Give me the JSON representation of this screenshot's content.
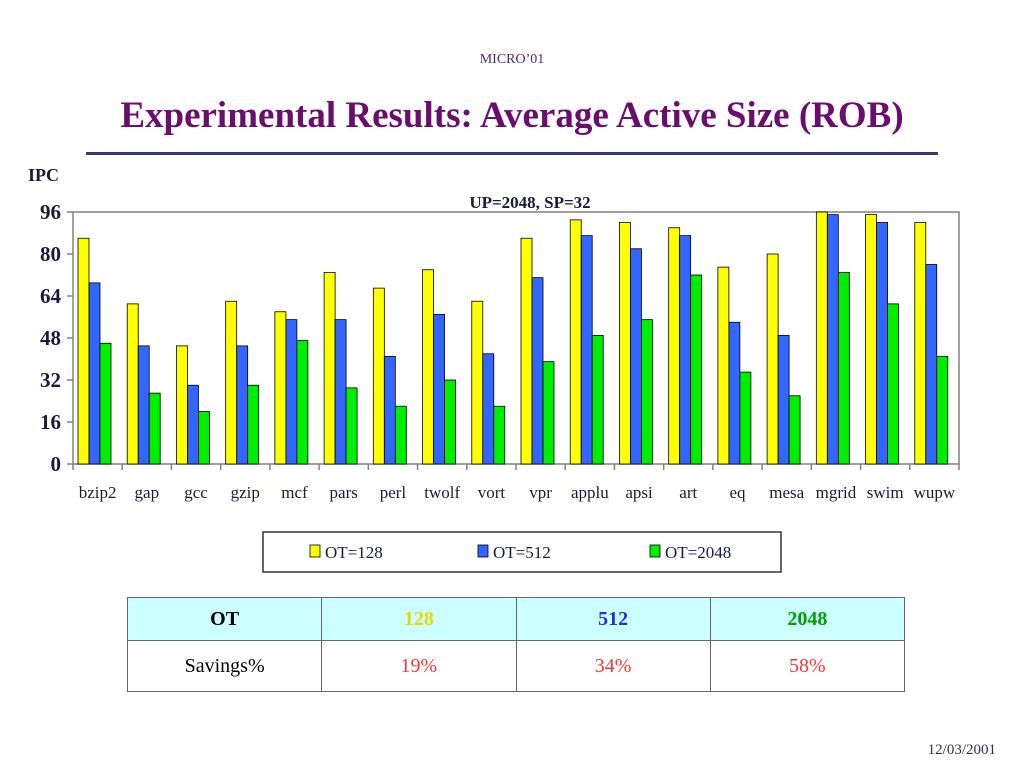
{
  "header": {
    "label": "MICRO’01"
  },
  "title": "Experimental Results: Average Active Size (ROB)",
  "chart_data": {
    "type": "bar",
    "ylabel": "IPC",
    "subtitle": "UP=2048, SP=32",
    "ylim": [
      0,
      96
    ],
    "yticks": [
      0,
      16,
      32,
      48,
      64,
      80,
      96
    ],
    "categories": [
      "bzip2",
      "gap",
      "gcc",
      "gzip",
      "mcf",
      "pars",
      "perl",
      "twolf",
      "vort",
      "vpr",
      "applu",
      "apsi",
      "art",
      "eq",
      "mesa",
      "mgrid",
      "swim",
      "wupw"
    ],
    "series": [
      {
        "name": "OT=128",
        "color": "#ffff00",
        "values": [
          86,
          61,
          45,
          62,
          58,
          73,
          67,
          74,
          62,
          86,
          93,
          92,
          90,
          75,
          80,
          96,
          95,
          92
        ]
      },
      {
        "name": "OT=512",
        "color": "#3366ff",
        "values": [
          69,
          45,
          30,
          45,
          55,
          55,
          41,
          57,
          42,
          71,
          87,
          82,
          87,
          54,
          49,
          95,
          92,
          76
        ]
      },
      {
        "name": "OT=2048",
        "color": "#00ee00",
        "values": [
          46,
          27,
          20,
          30,
          47,
          29,
          22,
          32,
          22,
          39,
          49,
          55,
          72,
          35,
          26,
          73,
          61,
          41
        ]
      }
    ],
    "grid": false,
    "legend": "bottom"
  },
  "table": {
    "header_label": "OT",
    "columns": [
      {
        "label": "128",
        "color": "#e8d800"
      },
      {
        "label": "512",
        "color": "#2233cc"
      },
      {
        "label": "2048",
        "color": "#00a000"
      }
    ],
    "row_label": "Savings%",
    "values": [
      "19%",
      "34%",
      "58%"
    ],
    "value_color": "#ff3333"
  },
  "footer": {
    "date": "12/03/2001"
  }
}
